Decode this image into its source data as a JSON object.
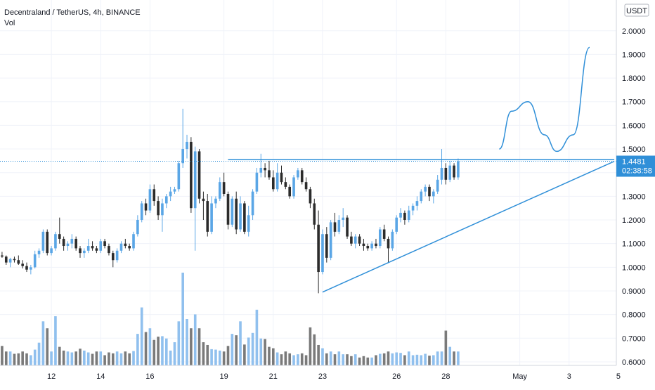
{
  "header": {
    "title": "Decentraland / TetherUS, 4h, BINANCE",
    "vol_label": "Vol"
  },
  "price_axis": {
    "currency": "USDT",
    "last_price": "1.4481",
    "countdown": "02:38:58"
  },
  "colors": {
    "up": "#5aa6e6",
    "down": "#2b2b2b",
    "vol_up": "#90c0ee",
    "vol_down": "#7a7a7a",
    "drawing": "#2f8fd8",
    "price_line": "#2f8fd8",
    "grid": "#f0f3fa"
  },
  "chart_data": {
    "type": "candlestick",
    "title": "Decentraland / TetherUS, 4h, BINANCE",
    "x_tick_labels": [
      {
        "label": "12",
        "index": 12
      },
      {
        "label": "14",
        "index": 24
      },
      {
        "label": "16",
        "index": 36
      },
      {
        "label": "19",
        "index": 54
      },
      {
        "label": "21",
        "index": 66
      },
      {
        "label": "23",
        "index": 78
      },
      {
        "label": "26",
        "index": 96
      },
      {
        "label": "28",
        "index": 108
      },
      {
        "label": "May",
        "index": 126
      },
      {
        "label": "3",
        "index": 138
      },
      {
        "label": "5",
        "index": 150
      }
    ],
    "y_ticks": [
      "2.0000",
      "1.9000",
      "1.8000",
      "1.7000",
      "1.6000",
      "1.5000",
      "1.4000",
      "1.3000",
      "1.2000",
      "1.1000",
      "1.0000",
      "0.9000",
      "0.8000",
      "0.7000",
      "0.6000"
    ],
    "y_range": [
      0.585,
      2.13
    ],
    "x_range": [
      -0.5,
      149.5
    ],
    "ohlc": [
      [
        1.05,
        1.065,
        1.04,
        1.045
      ],
      [
        1.045,
        1.05,
        1.01,
        1.02
      ],
      [
        1.02,
        1.04,
        1.0,
        1.035
      ],
      [
        1.035,
        1.045,
        1.02,
        1.03
      ],
      [
        1.03,
        1.05,
        1.01,
        1.015
      ],
      [
        1.015,
        1.03,
        0.995,
        1.005
      ],
      [
        1.005,
        1.02,
        0.98,
        0.99
      ],
      [
        0.99,
        1.01,
        0.97,
        1.0
      ],
      [
        1.0,
        1.07,
        0.995,
        1.055
      ],
      [
        1.055,
        1.08,
        1.04,
        1.07
      ],
      [
        1.07,
        1.16,
        1.06,
        1.15
      ],
      [
        1.15,
        1.16,
        1.05,
        1.06
      ],
      [
        1.06,
        1.09,
        1.05,
        1.08
      ],
      [
        1.08,
        1.15,
        1.07,
        1.14
      ],
      [
        1.14,
        1.21,
        1.1,
        1.12
      ],
      [
        1.12,
        1.13,
        1.07,
        1.09
      ],
      [
        1.09,
        1.11,
        1.07,
        1.1
      ],
      [
        1.1,
        1.14,
        1.08,
        1.12
      ],
      [
        1.12,
        1.13,
        1.07,
        1.08
      ],
      [
        1.08,
        1.09,
        1.04,
        1.06
      ],
      [
        1.06,
        1.08,
        1.04,
        1.07
      ],
      [
        1.07,
        1.12,
        1.06,
        1.09
      ],
      [
        1.09,
        1.11,
        1.07,
        1.08
      ],
      [
        1.08,
        1.09,
        1.06,
        1.07
      ],
      [
        1.07,
        1.12,
        1.06,
        1.11
      ],
      [
        1.11,
        1.12,
        1.08,
        1.09
      ],
      [
        1.09,
        1.1,
        1.05,
        1.06
      ],
      [
        1.06,
        1.07,
        1.0,
        1.03
      ],
      [
        1.03,
        1.08,
        1.02,
        1.07
      ],
      [
        1.07,
        1.11,
        1.06,
        1.1
      ],
      [
        1.1,
        1.12,
        1.08,
        1.09
      ],
      [
        1.09,
        1.1,
        1.07,
        1.08
      ],
      [
        1.08,
        1.15,
        1.07,
        1.14
      ],
      [
        1.14,
        1.22,
        1.13,
        1.2
      ],
      [
        1.2,
        1.28,
        1.19,
        1.27
      ],
      [
        1.27,
        1.29,
        1.22,
        1.24
      ],
      [
        1.24,
        1.35,
        1.23,
        1.33
      ],
      [
        1.33,
        1.35,
        1.26,
        1.28
      ],
      [
        1.28,
        1.3,
        1.2,
        1.22
      ],
      [
        1.22,
        1.29,
        1.15,
        1.27
      ],
      [
        1.27,
        1.31,
        1.25,
        1.3
      ],
      [
        1.3,
        1.34,
        1.28,
        1.32
      ],
      [
        1.32,
        1.34,
        1.31,
        1.33
      ],
      [
        1.33,
        1.45,
        1.32,
        1.44
      ],
      [
        1.44,
        1.67,
        1.42,
        1.5
      ],
      [
        1.5,
        1.56,
        1.46,
        1.53
      ],
      [
        1.53,
        1.55,
        1.23,
        1.25
      ],
      [
        1.25,
        1.51,
        1.07,
        1.49
      ],
      [
        1.49,
        1.5,
        1.27,
        1.29
      ],
      [
        1.29,
        1.32,
        1.2,
        1.28
      ],
      [
        1.28,
        1.31,
        1.13,
        1.15
      ],
      [
        1.15,
        1.3,
        1.14,
        1.27
      ],
      [
        1.27,
        1.3,
        1.25,
        1.29
      ],
      [
        1.29,
        1.38,
        1.28,
        1.36
      ],
      [
        1.36,
        1.4,
        1.3,
        1.31
      ],
      [
        1.31,
        1.32,
        1.16,
        1.18
      ],
      [
        1.18,
        1.3,
        1.17,
        1.29
      ],
      [
        1.29,
        1.32,
        1.14,
        1.16
      ],
      [
        1.16,
        1.3,
        1.15,
        1.27
      ],
      [
        1.27,
        1.28,
        1.14,
        1.15
      ],
      [
        1.15,
        1.26,
        1.13,
        1.22
      ],
      [
        1.22,
        1.33,
        1.2,
        1.32
      ],
      [
        1.32,
        1.42,
        1.31,
        1.4
      ],
      [
        1.4,
        1.48,
        1.38,
        1.42
      ],
      [
        1.42,
        1.44,
        1.38,
        1.41
      ],
      [
        1.41,
        1.45,
        1.37,
        1.38
      ],
      [
        1.38,
        1.41,
        1.32,
        1.33
      ],
      [
        1.33,
        1.44,
        1.32,
        1.4
      ],
      [
        1.4,
        1.43,
        1.35,
        1.36
      ],
      [
        1.36,
        1.38,
        1.33,
        1.34
      ],
      [
        1.34,
        1.35,
        1.29,
        1.3
      ],
      [
        1.3,
        1.39,
        1.29,
        1.38
      ],
      [
        1.38,
        1.42,
        1.37,
        1.41
      ],
      [
        1.41,
        1.42,
        1.35,
        1.36
      ],
      [
        1.36,
        1.38,
        1.32,
        1.33
      ],
      [
        1.33,
        1.34,
        1.25,
        1.27
      ],
      [
        1.27,
        1.29,
        1.16,
        1.18
      ],
      [
        1.18,
        1.24,
        0.89,
        0.98
      ],
      [
        0.98,
        1.16,
        0.97,
        1.14
      ],
      [
        1.14,
        1.17,
        1.02,
        1.04
      ],
      [
        1.04,
        1.2,
        1.03,
        1.19
      ],
      [
        1.19,
        1.23,
        1.13,
        1.15
      ],
      [
        1.15,
        1.22,
        1.14,
        1.2
      ],
      [
        1.2,
        1.25,
        1.17,
        1.21
      ],
      [
        1.21,
        1.22,
        1.12,
        1.13
      ],
      [
        1.13,
        1.15,
        1.09,
        1.1
      ],
      [
        1.1,
        1.14,
        1.08,
        1.13
      ],
      [
        1.13,
        1.14,
        1.09,
        1.1
      ],
      [
        1.1,
        1.12,
        1.07,
        1.09
      ],
      [
        1.09,
        1.1,
        1.07,
        1.08
      ],
      [
        1.08,
        1.11,
        1.07,
        1.1
      ],
      [
        1.1,
        1.12,
        1.08,
        1.09
      ],
      [
        1.09,
        1.17,
        1.08,
        1.16
      ],
      [
        1.16,
        1.18,
        1.11,
        1.12
      ],
      [
        1.12,
        1.13,
        1.02,
        1.08
      ],
      [
        1.08,
        1.16,
        1.07,
        1.15
      ],
      [
        1.15,
        1.22,
        1.14,
        1.21
      ],
      [
        1.21,
        1.25,
        1.19,
        1.23
      ],
      [
        1.23,
        1.24,
        1.18,
        1.2
      ],
      [
        1.2,
        1.26,
        1.19,
        1.24
      ],
      [
        1.24,
        1.27,
        1.22,
        1.26
      ],
      [
        1.26,
        1.3,
        1.24,
        1.28
      ],
      [
        1.28,
        1.33,
        1.27,
        1.32
      ],
      [
        1.32,
        1.35,
        1.3,
        1.34
      ],
      [
        1.34,
        1.35,
        1.28,
        1.3
      ],
      [
        1.3,
        1.33,
        1.27,
        1.32
      ],
      [
        1.32,
        1.39,
        1.31,
        1.37
      ],
      [
        1.37,
        1.5,
        1.35,
        1.42
      ],
      [
        1.42,
        1.44,
        1.35,
        1.37
      ],
      [
        1.37,
        1.45,
        1.36,
        1.43
      ],
      [
        1.43,
        1.44,
        1.37,
        1.38
      ],
      [
        1.38,
        1.46,
        1.37,
        1.4481
      ]
    ],
    "volume": [
      0.42,
      0.3,
      0.3,
      0.25,
      0.26,
      0.3,
      0.26,
      0.22,
      0.34,
      0.49,
      0.95,
      0.8,
      0.3,
      1.06,
      0.4,
      0.32,
      0.3,
      0.28,
      0.3,
      0.36,
      0.32,
      0.28,
      0.25,
      0.3,
      0.3,
      0.22,
      0.28,
      0.26,
      0.3,
      0.26,
      0.3,
      0.26,
      0.31,
      0.68,
      1.25,
      0.72,
      0.8,
      0.55,
      0.62,
      0.63,
      0.58,
      0.32,
      0.5,
      0.95,
      2.0,
      1.0,
      0.8,
      1.1,
      0.8,
      0.5,
      0.44,
      0.35,
      0.34,
      0.32,
      0.3,
      0.42,
      0.68,
      0.65,
      0.95,
      0.45,
      0.6,
      0.7,
      1.2,
      0.58,
      0.57,
      0.4,
      0.37,
      0.28,
      0.24,
      0.3,
      0.26,
      0.22,
      0.24,
      0.26,
      0.22,
      0.82,
      0.67,
      0.44,
      0.37,
      0.26,
      0.3,
      0.24,
      0.3,
      0.24,
      0.24,
      0.2,
      0.24,
      0.17,
      0.2,
      0.17,
      0.17,
      0.22,
      0.25,
      0.26,
      0.3,
      0.26,
      0.28,
      0.27,
      0.22,
      0.3,
      0.22,
      0.23,
      0.22,
      0.25,
      0.21,
      0.22,
      0.3,
      0.3,
      0.75,
      0.4,
      0.3,
      0.3
    ],
    "volume_max": 2.0,
    "levels": [
      1.4481
    ],
    "drawings": [
      {
        "kind": "horizontal-resistance",
        "from": [
          55,
          1.455
        ],
        "to": [
          149,
          1.455
        ]
      },
      {
        "kind": "rising-trendline",
        "from": [
          78,
          0.895
        ],
        "to": [
          149,
          1.448
        ]
      },
      {
        "kind": "projected-path",
        "points": [
          [
            121,
            1.5
          ],
          [
            124,
            1.66
          ],
          [
            128,
            1.7
          ],
          [
            132,
            1.56
          ],
          [
            135,
            1.49
          ],
          [
            139,
            1.56
          ],
          [
            143,
            1.93
          ]
        ]
      }
    ]
  }
}
